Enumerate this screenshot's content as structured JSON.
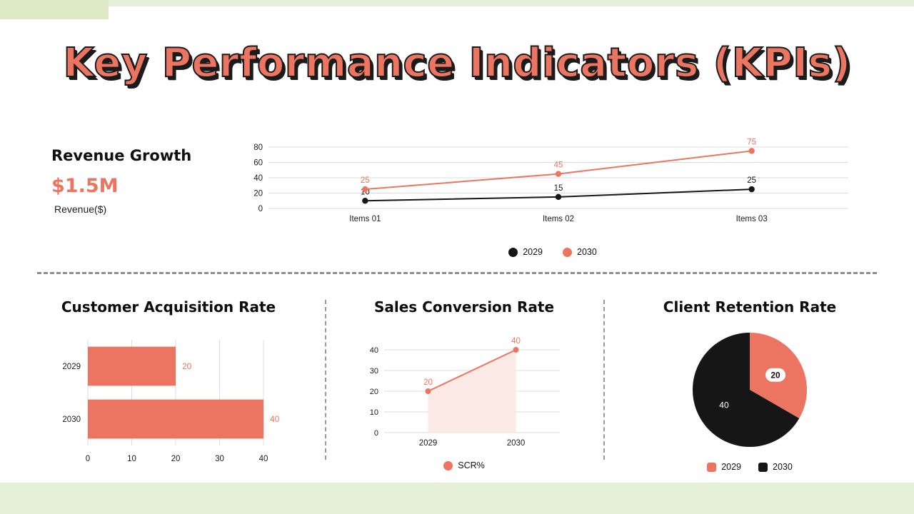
{
  "title": "Key Performance Indicators (KPIs)",
  "colors": {
    "coral": "#EC7561",
    "black": "#161616",
    "area_fill": "#FBE9E5",
    "grid": "#DCDCDC",
    "green_strip": "#E6EFD8",
    "green_corner": "#DCE8C6"
  },
  "revenue": {
    "heading": "Revenue Growth",
    "value": "$1.5M",
    "sublabel": "Revenue($)"
  },
  "chart_data": [
    {
      "id": "revenue-line",
      "type": "line",
      "title": "Revenue Growth",
      "categories": [
        "Items 01",
        "Items 02",
        "Items 03"
      ],
      "series": [
        {
          "name": "2029",
          "color_key": "black",
          "values": [
            10,
            15,
            25
          ]
        },
        {
          "name": "2030",
          "color_key": "coral",
          "values": [
            25,
            45,
            75
          ]
        }
      ],
      "ylim": [
        0,
        80
      ],
      "yticks": [
        0,
        20,
        40,
        60,
        80
      ],
      "grid": true,
      "legend_position": "bottom"
    },
    {
      "id": "acquisition-bar",
      "type": "bar",
      "orientation": "horizontal",
      "title": "Customer Acquisition Rate",
      "categories": [
        "2029",
        "2030"
      ],
      "values": [
        20,
        40
      ],
      "bar_color_key": "coral",
      "xlim": [
        0,
        40
      ],
      "xticks": [
        0,
        10,
        20,
        30,
        40
      ],
      "grid": true
    },
    {
      "id": "conversion-area",
      "type": "area",
      "title": "Sales Conversion Rate",
      "categories": [
        "2029",
        "2030"
      ],
      "series": [
        {
          "name": "SCR%",
          "color_key": "coral",
          "values": [
            20,
            40
          ]
        }
      ],
      "ylim": [
        0,
        40
      ],
      "yticks": [
        0,
        10,
        20,
        30,
        40
      ],
      "grid": true,
      "legend_position": "bottom"
    },
    {
      "id": "retention-pie",
      "type": "pie",
      "title": "Client Retention Rate",
      "slices": [
        {
          "label": "2029",
          "value": 20,
          "color_key": "coral",
          "label_style": "pill"
        },
        {
          "label": "2030",
          "value": 40,
          "color_key": "black",
          "label_style": "plain"
        }
      ],
      "legend_position": "bottom"
    }
  ]
}
